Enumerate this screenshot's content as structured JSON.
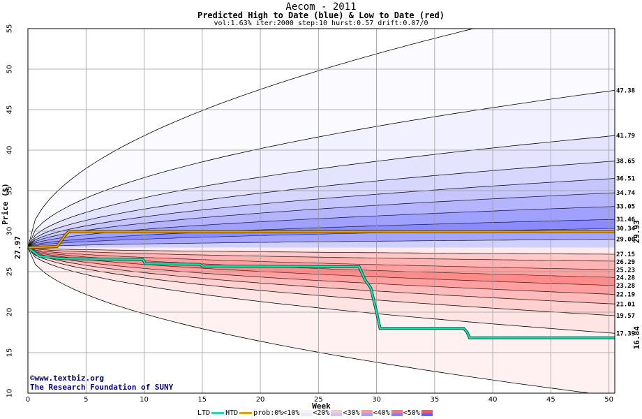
{
  "header": {
    "title": "Aecom - 2011",
    "subtitle": "Predicted High to Date (blue) &  Low to Date (red)",
    "params": "vol:1.63% iter:2000 step:10 hurst:0.57 drift:0.07/0"
  },
  "watermark": {
    "line1": "©www.textbiz.org",
    "line2": "The Research Foundation of SUNY"
  },
  "chart_data": {
    "type": "area",
    "xlabel": "Week",
    "ylabel": "Price ($)",
    "xlim": [
      0,
      50.5
    ],
    "ylim": [
      10,
      55
    ],
    "x_ticks": [
      0,
      5,
      10,
      15,
      20,
      25,
      30,
      35,
      40,
      45,
      50
    ],
    "y_ticks": [
      10,
      15,
      20,
      25,
      30,
      35,
      40,
      45,
      50,
      55
    ],
    "grid": true,
    "start_price": 27.97,
    "start_label": "27.97",
    "htd_end_label": "29.93",
    "ltd_end_label": "16.84",
    "colors": {
      "high_fill": "#7777ff",
      "low_fill": "#ff7777",
      "htd_line": "#e8a000",
      "ltd_line": "#22ddaa",
      "htd_label": "#a07000",
      "ltd_label": "#009060",
      "start_label": "#007a00"
    },
    "high_levels": [
      {
        "label": "29.00",
        "value": 29.0,
        "opacity": 0.35
      },
      {
        "label": "30.34",
        "value": 30.34,
        "opacity": 0.65
      },
      {
        "label": "31.46",
        "value": 31.46,
        "opacity": 0.85
      },
      {
        "label": "33.05",
        "value": 33.05,
        "opacity": 0.7
      },
      {
        "label": "34.74",
        "value": 34.74,
        "opacity": 0.55
      },
      {
        "label": "36.51",
        "value": 36.51,
        "opacity": 0.42
      },
      {
        "label": "38.65",
        "value": 38.65,
        "opacity": 0.3
      },
      {
        "label": "41.79",
        "value": 41.79,
        "opacity": 0.2
      },
      {
        "label": "47.38",
        "value": 47.38,
        "opacity": 0.1
      },
      {
        "label": "",
        "value": 59.0,
        "opacity": 0.04
      }
    ],
    "low_levels": [
      {
        "label": "27.15",
        "value": 27.15,
        "opacity": 0.15
      },
      {
        "label": "26.29",
        "value": 26.29,
        "opacity": 0.4
      },
      {
        "label": "25.23",
        "value": 25.23,
        "opacity": 0.55
      },
      {
        "label": "24.28",
        "value": 24.28,
        "opacity": 0.7
      },
      {
        "label": "23.28",
        "value": 23.28,
        "opacity": 0.85
      },
      {
        "label": "22.19",
        "value": 22.19,
        "opacity": 0.7
      },
      {
        "label": "21.01",
        "value": 21.01,
        "opacity": 0.5
      },
      {
        "label": "19.57",
        "value": 19.57,
        "opacity": 0.35
      },
      {
        "label": "17.39",
        "value": 17.39,
        "opacity": 0.2
      },
      {
        "label": "",
        "value": 9.6,
        "opacity": 0.1
      }
    ],
    "htd_series": {
      "name": "HTD",
      "points": [
        [
          0,
          27.97
        ],
        [
          2.5,
          28.1
        ],
        [
          3.2,
          29.5
        ],
        [
          3.5,
          29.93
        ],
        [
          50.5,
          29.93
        ]
      ]
    },
    "ltd_series": {
      "name": "LTD",
      "points": [
        [
          0,
          27.97
        ],
        [
          1,
          26.9
        ],
        [
          3,
          26.6
        ],
        [
          9.9,
          26.5
        ],
        [
          10.1,
          26.0
        ],
        [
          14.8,
          25.9
        ],
        [
          15,
          25.7
        ],
        [
          28.5,
          25.6
        ],
        [
          29,
          24.0
        ],
        [
          29.5,
          23.0
        ],
        [
          30,
          20.0
        ],
        [
          30.3,
          18.0
        ],
        [
          37.5,
          18.0
        ],
        [
          37.8,
          17.5
        ],
        [
          38,
          16.84
        ],
        [
          50.5,
          16.84
        ]
      ]
    }
  },
  "legend": {
    "ltd": "LTD",
    "htd": "HTD",
    "prob": "prob:0%",
    "items": [
      "<10%",
      "<20%",
      "<30%",
      "<40%",
      "<50%"
    ],
    "colors": [
      "#fff0f0",
      "#e8e8ff",
      "#ffc8c8",
      "#c8c8ff",
      "#ff9a9a",
      "#a0a0ff",
      "#ff7777",
      "#8080ff",
      "#ff5858",
      "#6060ff"
    ]
  }
}
